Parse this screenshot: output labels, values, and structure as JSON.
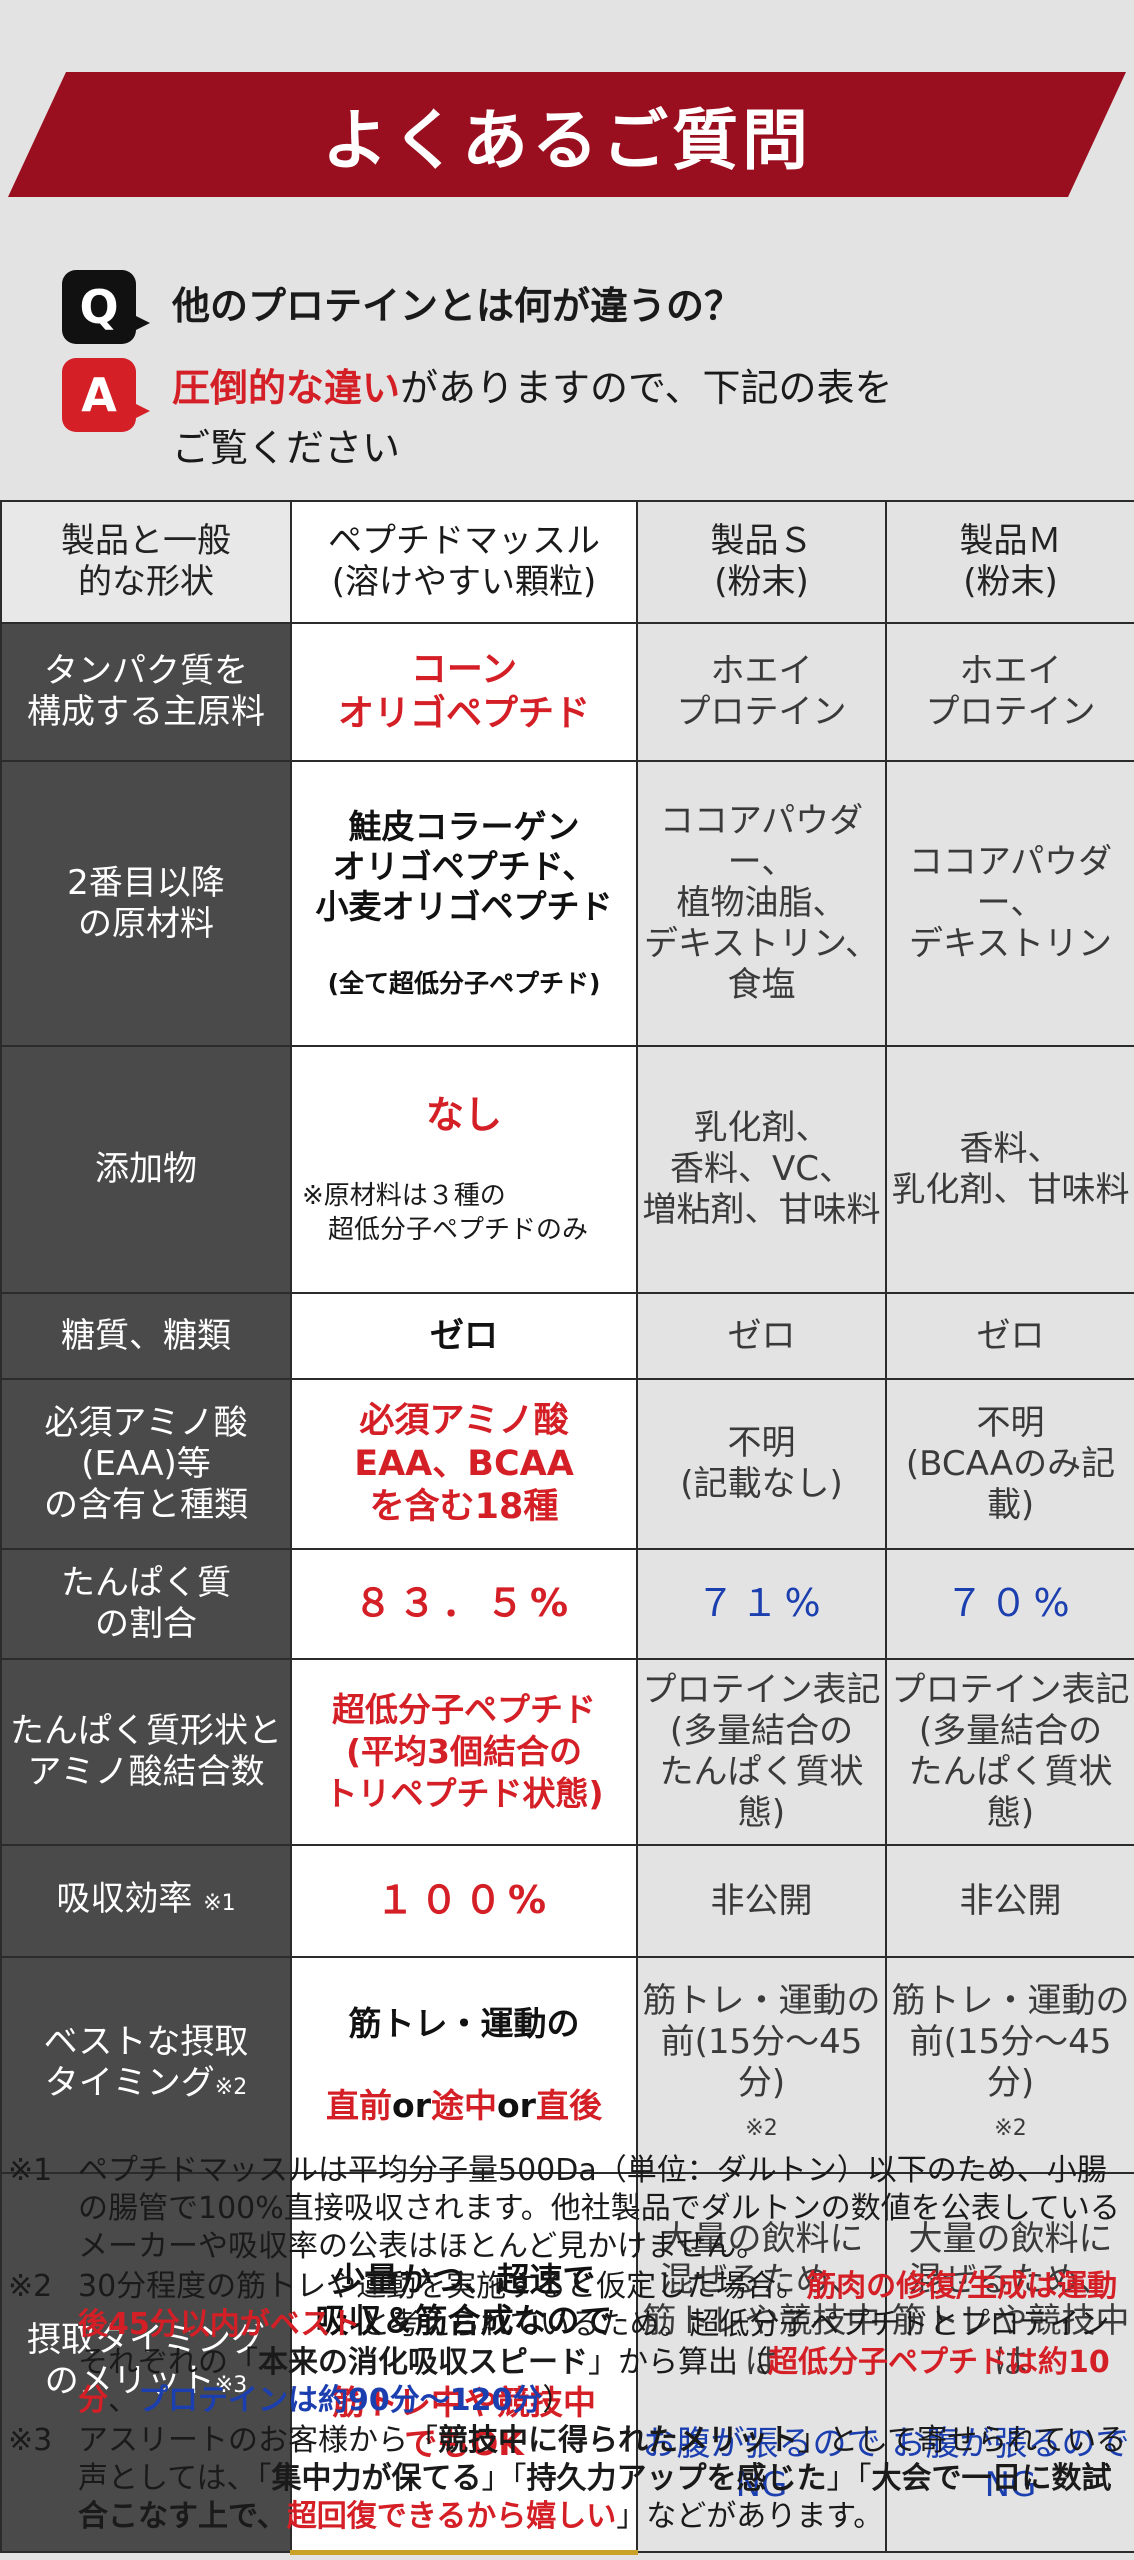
{
  "banner": {
    "title": "よくあるご質問"
  },
  "qa": {
    "q_badge": "Q",
    "question": "他のプロテインとは何が違うの？",
    "a_badge": "A",
    "answer_highlight": "圧倒的な違い",
    "answer_rest_line1": "がありますので、下記の表を",
    "answer_line2": "ご覧ください"
  },
  "table": {
    "header": {
      "label": "製品と一般\n的な形状",
      "pep": "ペプチドマッスル\n(溶けやすい顆粒)",
      "s": "製品Ｓ\n(粉末)",
      "m": "製品Ｍ\n(粉末)"
    },
    "rows": [
      {
        "label": "タンパク質を\n構成する主原料",
        "pep": "コーン\nオリゴペプチド",
        "s": "ホエイ\nプロテイン",
        "m": "ホエイ\nプロテイン"
      },
      {
        "label": "2番目以降\nの原材料",
        "pep": "鮭皮コラーゲン\nオリゴペプチド、\n小麦オリゴペプチド",
        "pep_sub": "(全て超低分子ペプチド)",
        "s": "ココアパウダー、\n植物油脂、\nデキストリン、\n食塩",
        "m": "ココアパウダー、\nデキストリン"
      },
      {
        "label": "添加物",
        "pep": "なし",
        "pep_sub": "※原材料は３種の\n　超低分子ペプチドのみ",
        "s": "乳化剤、\n香料、VC、\n増粘剤、甘味料",
        "m": "香料、\n乳化剤、甘味料"
      },
      {
        "label": "糖質、糖類",
        "pep": "ゼロ",
        "s": "ゼロ",
        "m": "ゼロ"
      },
      {
        "label": "必須アミノ酸\n(EAA)等\nの含有と種類",
        "pep": "必須アミノ酸\nEAA、BCAA\nを含む18種",
        "s": "不明\n(記載なし)",
        "m": "不明\n(BCAAのみ記載)"
      },
      {
        "label": "たんぱく質\nの割合",
        "pep": "８３．５%",
        "s": "７１%",
        "m": "７０%"
      },
      {
        "label": "たんぱく質形状と\nアミノ酸結合数",
        "pep": "超低分子ペプチド\n(平均3個結合の\nトリペプチド状態)",
        "s": "プロテイン表記\n(多量結合の\nたんぱく質状態)",
        "m": "プロテイン表記\n(多量結合の\nたんぱく質状態)"
      },
      {
        "label": "吸収効率",
        "label_note": "※1",
        "pep": "１００%",
        "s": "非公開",
        "m": "非公開"
      },
      {
        "label": "ベストな摂取\nタイミング",
        "label_note": "※2",
        "pep_line1": "筋トレ・運動の",
        "pep_a": "直前",
        "pep_or1": "or",
        "pep_b": "途中",
        "pep_or2": "or",
        "pep_c": "直後",
        "s": "筋トレ・運動の\n前(15分〜45分)",
        "s_note": "※2",
        "m": "筋トレ・運動の\n前(15分〜45分)",
        "m_note": "※2"
      },
      {
        "label": "摂取タイミング\nのメリット",
        "label_note": "※3",
        "pep_black": "少量かつ、超速で\n吸収＆筋合成なので",
        "pep_red": "筋トレ中や競技中\nでもOK",
        "s_black": "大量の飲料に\n混ぜるため、\n筋トレや競技中は",
        "s_blue": "お腹が張るので\nNG",
        "m_black": "大量の飲料に\n混ぜるため、\n筋トレや競技中は",
        "m_blue": "お腹が張るので\nNG"
      }
    ]
  },
  "notes": [
    {
      "mark": "※1",
      "text": "ペプチドマッスルは平均分子量500Da（単位：ダルトン）以下のため、小腸の腸管で100%直接吸収されます。他社製品でダルトンの数値を公表しているメーカーや吸収率の公表はほとんど見かけません。"
    },
    {
      "mark": "※2",
      "t1": "30分程度の筋トレや運動を実施すると仮定した場合。",
      "t2": "筋肉の修復/生成は運動後45分以内がベスト",
      "t3": "と考えられているため。超低分子ペプチドとプロテインそれぞれの「",
      "t4": "本来の消化吸収スピード",
      "t5": "」から算出（",
      "t6": "超低分子ペプチドは約10分",
      "t7": "、",
      "t8": "プロテインは約90分〜120分",
      "t9": "）"
    },
    {
      "mark": "※3",
      "t1": "アスリートのお客様から「",
      "t2": "競技中に得られたメリット",
      "t3": "」として寄せられている声としては、「",
      "t4": "集中力が保てる",
      "t5": "」「",
      "t6": "持久力アップを感じた",
      "t7": "」「",
      "t8": "大会で一日に数試合こなす上で、",
      "t9": "超回復できるから嬉しい",
      "t10": "」などがあります。"
    }
  ]
}
